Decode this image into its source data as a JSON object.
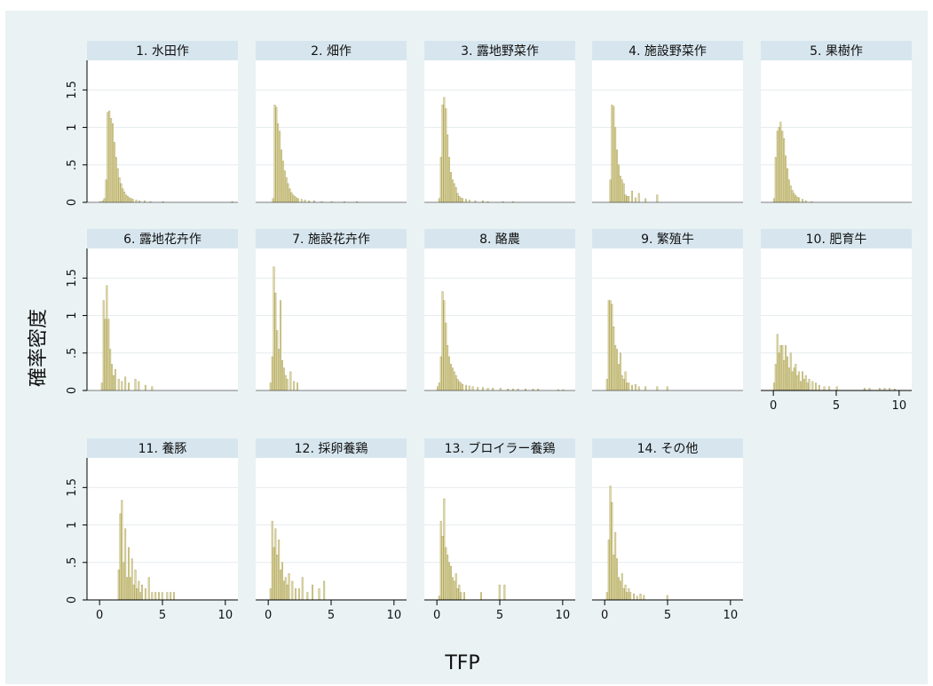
{
  "chart_data": {
    "type": "bar",
    "xlabel": "TFP",
    "ylabel": "確率密度",
    "xlim": [
      -1,
      11
    ],
    "ylim": [
      0,
      1.8
    ],
    "xticks": [
      0,
      5,
      10
    ],
    "xtick_labels": [
      "0",
      "5",
      "10"
    ],
    "yticks": [
      0,
      0.5,
      1,
      1.5
    ],
    "ytick_labels": [
      "0",
      ".5",
      "1",
      "1.5"
    ],
    "grid": true,
    "bin_width": 0.133,
    "panels": [
      {
        "title": "1. 水田作",
        "bins": [
          [
            0.0,
            0.01
          ],
          [
            0.2,
            0.02
          ],
          [
            0.33,
            0.05
          ],
          [
            0.47,
            0.3
          ],
          [
            0.6,
            1.2
          ],
          [
            0.73,
            1.22
          ],
          [
            0.87,
            1.12
          ],
          [
            1.0,
            1.05
          ],
          [
            1.13,
            0.8
          ],
          [
            1.27,
            0.6
          ],
          [
            1.4,
            0.45
          ],
          [
            1.53,
            0.33
          ],
          [
            1.67,
            0.25
          ],
          [
            1.8,
            0.18
          ],
          [
            1.93,
            0.14
          ],
          [
            2.07,
            0.1
          ],
          [
            2.2,
            0.08
          ],
          [
            2.33,
            0.06
          ],
          [
            2.47,
            0.05
          ],
          [
            2.6,
            0.04
          ],
          [
            2.87,
            0.03
          ],
          [
            3.13,
            0.02
          ],
          [
            3.53,
            0.02
          ],
          [
            4.0,
            0.01
          ],
          [
            5.0,
            0.01
          ],
          [
            10.5,
            0.01
          ]
        ]
      },
      {
        "title": "2. 畑作",
        "bins": [
          [
            0.33,
            0.05
          ],
          [
            0.47,
            1.3
          ],
          [
            0.6,
            1.27
          ],
          [
            0.73,
            1.05
          ],
          [
            0.87,
            0.95
          ],
          [
            1.0,
            0.7
          ],
          [
            1.13,
            0.55
          ],
          [
            1.27,
            0.42
          ],
          [
            1.4,
            0.33
          ],
          [
            1.53,
            0.25
          ],
          [
            1.67,
            0.18
          ],
          [
            1.8,
            0.13
          ],
          [
            1.93,
            0.1
          ],
          [
            2.07,
            0.08
          ],
          [
            2.2,
            0.06
          ],
          [
            2.33,
            0.05
          ],
          [
            2.6,
            0.04
          ],
          [
            2.87,
            0.03
          ],
          [
            3.2,
            0.02
          ],
          [
            3.6,
            0.02
          ],
          [
            4.2,
            0.01
          ],
          [
            5.0,
            0.01
          ],
          [
            6.0,
            0.01
          ],
          [
            7.0,
            0.01
          ]
        ]
      },
      {
        "title": "3. 露地野菜作",
        "bins": [
          [
            0.13,
            0.05
          ],
          [
            0.27,
            0.6
          ],
          [
            0.4,
            1.3
          ],
          [
            0.53,
            1.4
          ],
          [
            0.67,
            1.25
          ],
          [
            0.8,
            0.9
          ],
          [
            0.93,
            0.6
          ],
          [
            1.07,
            0.4
          ],
          [
            1.2,
            0.3
          ],
          [
            1.33,
            0.25
          ],
          [
            1.47,
            0.2
          ],
          [
            1.6,
            0.12
          ],
          [
            1.73,
            0.08
          ],
          [
            1.87,
            0.06
          ],
          [
            2.0,
            0.05
          ],
          [
            2.27,
            0.04
          ],
          [
            2.53,
            0.03
          ],
          [
            3.0,
            0.02
          ],
          [
            3.6,
            0.02
          ],
          [
            4.0,
            0.01
          ],
          [
            5.2,
            0.01
          ],
          [
            6.0,
            0.01
          ]
        ]
      },
      {
        "title": "4. 施設野菜作",
        "bins": [
          [
            0.4,
            0.3
          ],
          [
            0.53,
            1.3
          ],
          [
            0.67,
            1.28
          ],
          [
            0.8,
            1.0
          ],
          [
            0.93,
            0.7
          ],
          [
            1.07,
            0.5
          ],
          [
            1.2,
            0.35
          ],
          [
            1.33,
            0.3
          ],
          [
            1.47,
            0.25
          ],
          [
            1.6,
            0.1
          ],
          [
            1.73,
            0.08
          ],
          [
            1.87,
            0.08
          ],
          [
            2.13,
            0.15
          ],
          [
            2.4,
            0.06
          ],
          [
            2.67,
            0.12
          ],
          [
            3.2,
            0.05
          ],
          [
            4.13,
            0.1
          ]
        ]
      },
      {
        "title": "5. 果樹作",
        "bins": [
          [
            0.0,
            0.05
          ],
          [
            0.13,
            0.6
          ],
          [
            0.27,
            0.95
          ],
          [
            0.4,
            1.0
          ],
          [
            0.53,
            1.07
          ],
          [
            0.67,
            0.95
          ],
          [
            0.8,
            0.85
          ],
          [
            0.93,
            0.62
          ],
          [
            1.07,
            0.45
          ],
          [
            1.2,
            0.3
          ],
          [
            1.33,
            0.22
          ],
          [
            1.47,
            0.16
          ],
          [
            1.6,
            0.12
          ],
          [
            1.73,
            0.09
          ],
          [
            1.87,
            0.07
          ],
          [
            2.0,
            0.06
          ],
          [
            2.27,
            0.04
          ],
          [
            2.53,
            0.02
          ],
          [
            3.0,
            0.01
          ]
        ]
      },
      {
        "title": "6. 露地花卉作",
        "bins": [
          [
            0.13,
            0.1
          ],
          [
            0.27,
            1.2
          ],
          [
            0.4,
            0.95
          ],
          [
            0.53,
            1.4
          ],
          [
            0.67,
            0.95
          ],
          [
            0.8,
            0.55
          ],
          [
            0.93,
            0.35
          ],
          [
            1.07,
            0.2
          ],
          [
            1.2,
            0.28
          ],
          [
            1.47,
            0.15
          ],
          [
            1.73,
            0.12
          ],
          [
            2.0,
            0.18
          ],
          [
            2.27,
            0.1
          ],
          [
            2.8,
            0.15
          ],
          [
            3.07,
            0.12
          ],
          [
            3.6,
            0.07
          ],
          [
            4.13,
            0.05
          ]
        ]
      },
      {
        "title": "7. 施設花卉作",
        "bins": [
          [
            0.13,
            0.1
          ],
          [
            0.27,
            0.45
          ],
          [
            0.4,
            1.65
          ],
          [
            0.53,
            1.3
          ],
          [
            0.67,
            0.8
          ],
          [
            0.8,
            0.55
          ],
          [
            0.93,
            1.2
          ],
          [
            1.07,
            0.4
          ],
          [
            1.2,
            0.3
          ],
          [
            1.33,
            0.2
          ],
          [
            1.47,
            0.15
          ],
          [
            1.73,
            0.25
          ],
          [
            2.0,
            0.12
          ],
          [
            2.27,
            0.1
          ]
        ]
      },
      {
        "title": "8. 酪農",
        "bins": [
          [
            0.0,
            0.05
          ],
          [
            0.13,
            0.1
          ],
          [
            0.27,
            0.45
          ],
          [
            0.4,
            1.32
          ],
          [
            0.53,
            1.2
          ],
          [
            0.67,
            0.9
          ],
          [
            0.8,
            0.6
          ],
          [
            0.93,
            0.45
          ],
          [
            1.07,
            0.35
          ],
          [
            1.2,
            0.3
          ],
          [
            1.33,
            0.25
          ],
          [
            1.47,
            0.2
          ],
          [
            1.6,
            0.15
          ],
          [
            1.73,
            0.12
          ],
          [
            1.87,
            0.1
          ],
          [
            2.0,
            0.08
          ],
          [
            2.27,
            0.07
          ],
          [
            2.53,
            0.06
          ],
          [
            2.8,
            0.05
          ],
          [
            3.2,
            0.04
          ],
          [
            3.6,
            0.04
          ],
          [
            4.0,
            0.03
          ],
          [
            4.4,
            0.03
          ],
          [
            5.0,
            0.03
          ],
          [
            5.6,
            0.02
          ],
          [
            6.0,
            0.02
          ],
          [
            6.4,
            0.02
          ],
          [
            7.0,
            0.02
          ],
          [
            7.6,
            0.02
          ],
          [
            8.0,
            0.02
          ],
          [
            9.6,
            0.01
          ],
          [
            10.0,
            0.01
          ]
        ]
      },
      {
        "title": "9. 繁殖牛",
        "bins": [
          [
            0.13,
            0.15
          ],
          [
            0.27,
            1.2
          ],
          [
            0.4,
            1.2
          ],
          [
            0.53,
            1.15
          ],
          [
            0.67,
            0.85
          ],
          [
            0.8,
            0.6
          ],
          [
            0.93,
            0.55
          ],
          [
            1.07,
            0.35
          ],
          [
            1.2,
            0.5
          ],
          [
            1.33,
            0.2
          ],
          [
            1.47,
            0.15
          ],
          [
            1.6,
            0.25
          ],
          [
            1.73,
            0.1
          ],
          [
            1.87,
            0.1
          ],
          [
            2.13,
            0.07
          ],
          [
            2.4,
            0.08
          ],
          [
            2.67,
            0.05
          ],
          [
            3.2,
            0.05
          ],
          [
            4.13,
            0.05
          ],
          [
            4.93,
            0.05
          ]
        ]
      },
      {
        "title": "10. 肥育牛",
        "bins": [
          [
            0.0,
            0.1
          ],
          [
            0.13,
            0.35
          ],
          [
            0.27,
            0.75
          ],
          [
            0.4,
            0.5
          ],
          [
            0.53,
            0.6
          ],
          [
            0.67,
            0.6
          ],
          [
            0.8,
            0.4
          ],
          [
            0.93,
            0.6
          ],
          [
            1.07,
            0.45
          ],
          [
            1.2,
            0.3
          ],
          [
            1.33,
            0.5
          ],
          [
            1.47,
            0.25
          ],
          [
            1.6,
            0.3
          ],
          [
            1.73,
            0.35
          ],
          [
            1.87,
            0.2
          ],
          [
            2.0,
            0.25
          ],
          [
            2.13,
            0.12
          ],
          [
            2.27,
            0.25
          ],
          [
            2.4,
            0.15
          ],
          [
            2.53,
            0.2
          ],
          [
            2.67,
            0.1
          ],
          [
            2.8,
            0.15
          ],
          [
            3.07,
            0.12
          ],
          [
            3.33,
            0.1
          ],
          [
            3.6,
            0.07
          ],
          [
            4.0,
            0.05
          ],
          [
            4.4,
            0.05
          ],
          [
            5.0,
            0.05
          ],
          [
            7.2,
            0.03
          ],
          [
            7.6,
            0.03
          ],
          [
            8.4,
            0.03
          ],
          [
            8.8,
            0.03
          ],
          [
            9.2,
            0.03
          ],
          [
            9.6,
            0.02
          ]
        ]
      },
      {
        "title": "11. 養豚",
        "bins": [
          [
            1.47,
            0.4
          ],
          [
            1.6,
            1.15
          ],
          [
            1.73,
            1.33
          ],
          [
            1.87,
            0.5
          ],
          [
            2.0,
            0.95
          ],
          [
            2.13,
            0.3
          ],
          [
            2.27,
            0.7
          ],
          [
            2.4,
            0.3
          ],
          [
            2.53,
            0.55
          ],
          [
            2.67,
            0.2
          ],
          [
            2.8,
            0.4
          ],
          [
            2.93,
            0.15
          ],
          [
            3.07,
            0.25
          ],
          [
            3.2,
            0.1
          ],
          [
            3.33,
            0.2
          ],
          [
            3.6,
            0.15
          ],
          [
            3.87,
            0.3
          ],
          [
            4.13,
            0.1
          ],
          [
            4.4,
            0.1
          ],
          [
            4.67,
            0.1
          ],
          [
            4.93,
            0.1
          ],
          [
            5.33,
            0.1
          ],
          [
            5.6,
            0.1
          ],
          [
            5.87,
            0.1
          ]
        ]
      },
      {
        "title": "12. 採卵養鶏",
        "bins": [
          [
            0.13,
            0.15
          ],
          [
            0.27,
            1.05
          ],
          [
            0.4,
            0.7
          ],
          [
            0.53,
            0.95
          ],
          [
            0.67,
            0.6
          ],
          [
            0.8,
            0.8
          ],
          [
            0.93,
            0.4
          ],
          [
            1.07,
            0.5
          ],
          [
            1.2,
            0.25
          ],
          [
            1.33,
            0.3
          ],
          [
            1.47,
            0.2
          ],
          [
            1.6,
            0.35
          ],
          [
            1.87,
            0.25
          ],
          [
            2.13,
            0.15
          ],
          [
            2.4,
            0.15
          ],
          [
            2.67,
            0.3
          ],
          [
            3.07,
            0.1
          ],
          [
            3.47,
            0.2
          ],
          [
            4.0,
            0.15
          ],
          [
            4.4,
            0.25
          ]
        ]
      },
      {
        "title": "13. ブロイラー養鶏",
        "bins": [
          [
            0.13,
            0.05
          ],
          [
            0.27,
            1.05
          ],
          [
            0.4,
            0.85
          ],
          [
            0.53,
            1.35
          ],
          [
            0.67,
            0.7
          ],
          [
            0.8,
            0.6
          ],
          [
            0.93,
            0.5
          ],
          [
            1.07,
            0.45
          ],
          [
            1.2,
            0.3
          ],
          [
            1.33,
            0.25
          ],
          [
            1.47,
            0.35
          ],
          [
            1.6,
            0.15
          ],
          [
            1.73,
            0.2
          ],
          [
            1.87,
            0.1
          ],
          [
            2.13,
            0.1
          ],
          [
            3.47,
            0.1
          ],
          [
            4.93,
            0.2
          ],
          [
            5.33,
            0.2
          ]
        ]
      },
      {
        "title": "14. その他",
        "bins": [
          [
            0.13,
            0.1
          ],
          [
            0.27,
            0.8
          ],
          [
            0.4,
            1.52
          ],
          [
            0.53,
            1.3
          ],
          [
            0.67,
            0.6
          ],
          [
            0.8,
            0.9
          ],
          [
            0.93,
            0.55
          ],
          [
            1.07,
            0.3
          ],
          [
            1.2,
            0.25
          ],
          [
            1.33,
            0.35
          ],
          [
            1.47,
            0.15
          ],
          [
            1.6,
            0.2
          ],
          [
            1.73,
            0.1
          ],
          [
            1.87,
            0.15
          ],
          [
            2.0,
            0.1
          ],
          [
            2.27,
            0.08
          ],
          [
            2.53,
            0.05
          ],
          [
            2.8,
            0.08
          ],
          [
            3.07,
            0.06
          ],
          [
            4.93,
            0.06
          ]
        ]
      }
    ]
  }
}
